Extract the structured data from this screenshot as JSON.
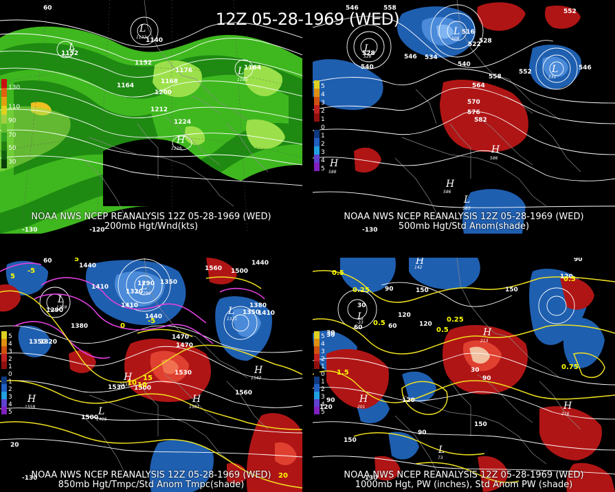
{
  "main_title": "12Z 05-28-1969 (WED)",
  "colors": {
    "background": "#000000",
    "jet_light": "#9be04a",
    "jet_mid": "#3fb81f",
    "jet_dark": "#1f8a12",
    "warm_anomaly": "#b01515",
    "cold_anomaly": "#1f5fb0",
    "magenta_isotherm": "#e040e0",
    "yellow_isoline": "#f0e020"
  },
  "panels": [
    {
      "id": "p200",
      "line1": "NOAA NWS NCEP REANALYSIS 12Z 05-28-1969 (WED)",
      "line2": "200mb Hgt/Wnd(kts)",
      "legend": [
        "130",
        "110",
        "90",
        "70",
        "50",
        "30"
      ],
      "height_labels": [
        "1152",
        "1140",
        "1152",
        "1164",
        "1176",
        "1168",
        "1200",
        "1164",
        "1212",
        "1224"
      ],
      "centers": [
        {
          "type": "L",
          "value": "1157"
        },
        {
          "type": "L",
          "value": "1133"
        },
        {
          "type": "L",
          "value": "1160"
        },
        {
          "type": "H",
          "value": "1228"
        }
      ],
      "coord_labels": [
        "60",
        "-130",
        "-120"
      ]
    },
    {
      "id": "p500",
      "line1": "NOAA NWS NCEP REANALYSIS 12Z 05-28-1969 (WED)",
      "line2": "500mb Hgt/Std Anom(shade)",
      "legend": [
        "5",
        "4",
        "3",
        "2",
        "1",
        "0",
        "1",
        "2",
        "3",
        "4",
        "5"
      ],
      "height_labels": [
        "546",
        "558",
        "552",
        "528",
        "540",
        "546",
        "534",
        "522",
        "528",
        "540",
        "516",
        "558",
        "552",
        "564",
        "546",
        "570",
        "576",
        "582"
      ],
      "centers": [
        {
          "type": "L",
          "value": "528"
        },
        {
          "type": "L",
          "value": "508"
        },
        {
          "type": "L",
          "value": "531"
        },
        {
          "type": "H",
          "value": "586"
        },
        {
          "type": "H",
          "value": "588"
        },
        {
          "type": "H",
          "value": "586"
        },
        {
          "type": "L",
          "value": "583"
        }
      ],
      "coord_labels": [
        "-130"
      ]
    },
    {
      "id": "p850",
      "line1": "NOAA NWS NCEP REANALYSIS 12Z 05-28-1969 (WED)",
      "line2": "850mb Hgt/Tmpc/Std Anom Tmpc(shade)",
      "legend": [
        "5",
        "4",
        "3",
        "2",
        "1",
        "0",
        "1",
        "2",
        "3",
        "4",
        "5"
      ],
      "height_labels": [
        "1440",
        "1470",
        "1410",
        "1290",
        "1350",
        "1320",
        "1410",
        "1440",
        "1500",
        "1380",
        "1350",
        "1410",
        "1290",
        "1380",
        "1350",
        "1320",
        "1470",
        "1440",
        "1530",
        "1500",
        "1530",
        "1560",
        "1500",
        "1560"
      ],
      "centers": [
        {
          "type": "L",
          "value": "1269"
        },
        {
          "type": "L",
          "value": "1290"
        },
        {
          "type": "L",
          "value": "1321"
        },
        {
          "type": "H",
          "value": "1559"
        },
        {
          "type": "H",
          "value": "1581"
        },
        {
          "type": "H",
          "value": "1533"
        },
        {
          "type": "H",
          "value": "1542"
        },
        {
          "type": "L",
          "value": "1486"
        }
      ],
      "coord_labels": [
        "60",
        "5",
        "-5",
        "5",
        "0",
        "-5",
        "10",
        "15",
        "10",
        "20",
        "-130",
        "20"
      ]
    },
    {
      "id": "p1000",
      "line1": "NOAA NWS NCEP REANALYSIS 12Z 05-28-1969 (WED)",
      "line2": "1000mb Hgt, PW (inches), Std Anom PW (shade)",
      "legend": [
        "5",
        "4",
        "3",
        "2",
        "1",
        "0",
        "1",
        "2",
        "3",
        "4",
        "5"
      ],
      "height_labels": [
        "0.5",
        "30",
        "0.25",
        "60",
        "120",
        "150",
        "90",
        "120",
        "0.5",
        "0.25",
        "30",
        "60",
        "150",
        "30",
        "90",
        "0.5",
        "120",
        "0.75",
        "150",
        "90",
        "120",
        "1.5",
        "90",
        "150",
        "120",
        "0.5",
        "30",
        "90"
      ],
      "centers": [
        {
          "type": "L",
          "value": "-33"
        },
        {
          "type": "H",
          "value": "201"
        },
        {
          "type": "H",
          "value": "142"
        },
        {
          "type": "H",
          "value": "213"
        },
        {
          "type": "L",
          "value": "73"
        },
        {
          "type": "H",
          "value": "216"
        }
      ],
      "coord_labels": [
        "-130"
      ]
    }
  ]
}
